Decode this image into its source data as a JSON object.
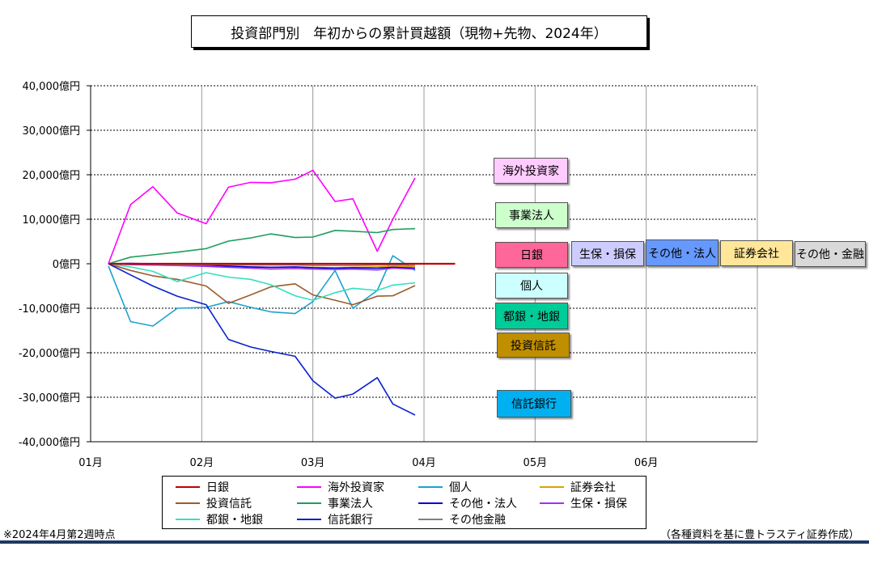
{
  "title": "投資部門別　年初からの累計買越額（現物+先物、2024年）",
  "note": "※2024年4月第2週時点",
  "source": "（各種資料を基に豊トラスティ証券作成）",
  "chart_data": {
    "type": "line",
    "title": "投資部門別　年初からの累計買越額（現物+先物、2024年）",
    "xlabel": "",
    "ylabel": "",
    "ylim": [
      -40000,
      40000
    ],
    "y_unit": "億円",
    "y_ticks": [
      {
        "value": 40000,
        "label": "40,000億円"
      },
      {
        "value": 30000,
        "label": "30,000億円"
      },
      {
        "value": 20000,
        "label": "20,000億円"
      },
      {
        "value": 10000,
        "label": "10,000億円"
      },
      {
        "value": 0,
        "label": "0億円"
      },
      {
        "value": -10000,
        "label": "-10,000億円"
      },
      {
        "value": -20000,
        "label": "-20,000億円"
      },
      {
        "value": -30000,
        "label": "-30,000億円"
      },
      {
        "value": -40000,
        "label": "-40,000億円"
      }
    ],
    "xlim": [
      0,
      30
    ],
    "x_ticks": [
      {
        "value": 0,
        "label": "01月"
      },
      {
        "value": 5,
        "label": "02月"
      },
      {
        "value": 10,
        "label": "03月"
      },
      {
        "value": 15,
        "label": "04月"
      },
      {
        "value": 20,
        "label": "05月"
      },
      {
        "value": 25,
        "label": "06月"
      }
    ],
    "x": [
      0.8,
      1.8,
      2.8,
      3.9,
      5.2,
      6.2,
      7.2,
      8.1,
      9.2,
      10.0,
      11.0,
      11.8,
      12.9,
      13.6,
      14.6,
      15.5,
      16.4
    ],
    "grid": true,
    "legend_position": "bottom",
    "series": [
      {
        "name": "日銀",
        "color": "#c00000",
        "values": [
          0,
          0,
          0,
          0,
          0,
          0,
          0,
          0,
          0,
          0,
          0,
          0,
          0,
          0,
          0,
          0,
          0
        ]
      },
      {
        "name": "海外投資家",
        "color": "#ff00ff",
        "values": [
          0,
          13300,
          17300,
          11400,
          9000,
          17200,
          18300,
          18200,
          19000,
          21000,
          14000,
          14600,
          2800,
          10000,
          19300,
          null,
          null
        ]
      },
      {
        "name": "個人",
        "color": "#1da1d1",
        "values": [
          -500,
          -13000,
          -14000,
          -10000,
          -9800,
          -8500,
          -9800,
          -10800,
          -11200,
          -8500,
          -1500,
          -10000,
          -6000,
          1800,
          -1500,
          null,
          null
        ]
      },
      {
        "name": "証券会社",
        "color": "#e0a000",
        "values": [
          0,
          -200,
          -300,
          -400,
          -500,
          -600,
          -700,
          -800,
          -800,
          -800,
          -900,
          -800,
          -700,
          -600,
          -700,
          null,
          null
        ]
      },
      {
        "name": "投資信託",
        "color": "#9c5b2a",
        "values": [
          0,
          -1500,
          -2700,
          -3500,
          -5000,
          -8900,
          -7000,
          -5200,
          -4500,
          -7000,
          -8200,
          -9200,
          -7300,
          -7200,
          -4900,
          null,
          null
        ]
      },
      {
        "name": "事業法人",
        "color": "#1e9e5a",
        "values": [
          0,
          1500,
          2000,
          2600,
          3400,
          5100,
          5800,
          6700,
          5900,
          6000,
          7500,
          7300,
          7000,
          7700,
          7900,
          null,
          null
        ]
      },
      {
        "name": "その他・法人",
        "color": "#0000cc",
        "values": [
          0,
          100,
          0,
          -200,
          -300,
          -500,
          -700,
          -800,
          -700,
          -900,
          -1000,
          -900,
          -1000,
          -800,
          -1000,
          null,
          null
        ]
      },
      {
        "name": "生保・損保",
        "color": "#9933ff",
        "values": [
          0,
          -200,
          -300,
          -400,
          -600,
          -800,
          -1000,
          -1200,
          -1100,
          -1200,
          -1300,
          -1200,
          -1400,
          -1000,
          -1200,
          null,
          null
        ]
      },
      {
        "name": "都銀・地銀",
        "color": "#33e0c0",
        "values": [
          0,
          -700,
          -1700,
          -4000,
          -2000,
          -3000,
          -3500,
          -4700,
          -7200,
          -8200,
          -6500,
          -5500,
          -6000,
          -4800,
          -4300,
          null,
          null
        ]
      },
      {
        "name": "信託銀行",
        "color": "#0a1ed2",
        "values": [
          0,
          -2500,
          -5000,
          -7300,
          -9200,
          -17000,
          -18700,
          -19700,
          -20800,
          -26300,
          -30200,
          -29300,
          -25600,
          -31500,
          -34000,
          null,
          null
        ]
      },
      {
        "name": "その他金融",
        "color": "#808080",
        "values": [
          0,
          -100,
          -100,
          -200,
          -200,
          -200,
          -300,
          -300,
          -300,
          -400,
          -400,
          -400,
          -300,
          -300,
          -400,
          null,
          null
        ]
      }
    ],
    "series_labels": [
      {
        "text": "海外投資家",
        "bg": "#ffccff"
      },
      {
        "text": "事業法人",
        "bg": "#ccffcc"
      },
      {
        "text": "日銀",
        "bg": "#ff6699"
      },
      {
        "text": "生保・損保",
        "bg": "#ccccff"
      },
      {
        "text": "その他・法人",
        "bg": "#6699ff"
      },
      {
        "text": "証券会社",
        "bg": "#ffe699"
      },
      {
        "text": "その他・金融",
        "bg": "#d9d9d9"
      },
      {
        "text": "個人",
        "bg": "#ccffff"
      },
      {
        "text": "都銀・地銀",
        "bg": "#00cc99"
      },
      {
        "text": "投資信託",
        "bg": "#bf8f00"
      },
      {
        "text": "信託銀行",
        "bg": "#00b0f0"
      }
    ]
  }
}
